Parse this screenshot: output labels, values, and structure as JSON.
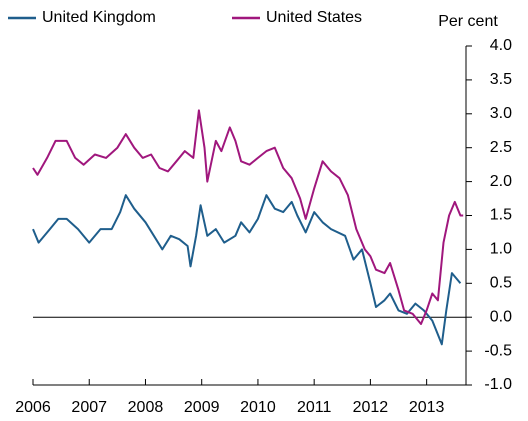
{
  "chart_data": {
    "type": "line",
    "y_axis_label": "Per cent",
    "legend": "top-left",
    "x": [],
    "series": [
      {
        "name": "United Kingdom",
        "color": "#1f5e8c",
        "x": [
          2006.0,
          2006.1,
          2006.3,
          2006.45,
          2006.6,
          2006.8,
          2007.0,
          2007.2,
          2007.4,
          2007.55,
          2007.65,
          2007.8,
          2008.0,
          2008.15,
          2008.3,
          2008.45,
          2008.6,
          2008.75,
          2008.8,
          2008.9,
          2008.98,
          2009.1,
          2009.25,
          2009.4,
          2009.6,
          2009.7,
          2009.85,
          2010.0,
          2010.15,
          2010.3,
          2010.45,
          2010.6,
          2010.7,
          2010.85,
          2011.0,
          2011.15,
          2011.3,
          2011.55,
          2011.7,
          2011.85,
          2012.0,
          2012.1,
          2012.25,
          2012.35,
          2012.5,
          2012.65,
          2012.8,
          2012.95,
          2013.0,
          2013.1,
          2013.27,
          2013.35,
          2013.45,
          2013.55,
          2013.6
        ],
        "values": [
          1.3,
          1.1,
          1.3,
          1.45,
          1.45,
          1.3,
          1.1,
          1.3,
          1.3,
          1.55,
          1.8,
          1.6,
          1.4,
          1.2,
          1.0,
          1.2,
          1.15,
          1.05,
          0.75,
          1.2,
          1.65,
          1.2,
          1.3,
          1.1,
          1.2,
          1.4,
          1.25,
          1.45,
          1.8,
          1.6,
          1.55,
          1.7,
          1.5,
          1.25,
          1.55,
          1.4,
          1.3,
          1.2,
          0.85,
          1.0,
          0.5,
          0.15,
          0.25,
          0.35,
          0.1,
          0.05,
          0.2,
          0.1,
          0.05,
          -0.05,
          -0.4,
          0.1,
          0.65,
          0.55,
          0.5
        ]
      },
      {
        "name": "United States",
        "color": "#a0177d",
        "x": [
          2006.0,
          2006.08,
          2006.25,
          2006.4,
          2006.6,
          2006.75,
          2006.9,
          2007.1,
          2007.3,
          2007.5,
          2007.65,
          2007.8,
          2007.95,
          2008.1,
          2008.25,
          2008.4,
          2008.55,
          2008.7,
          2008.85,
          2008.95,
          2009.05,
          2009.1,
          2009.25,
          2009.35,
          2009.5,
          2009.6,
          2009.7,
          2009.85,
          2010.0,
          2010.15,
          2010.3,
          2010.45,
          2010.6,
          2010.75,
          2010.85,
          2011.0,
          2011.15,
          2011.3,
          2011.45,
          2011.6,
          2011.75,
          2011.9,
          2012.0,
          2012.1,
          2012.25,
          2012.35,
          2012.5,
          2012.6,
          2012.75,
          2012.9,
          2013.0,
          2013.1,
          2013.2,
          2013.3,
          2013.4,
          2013.5,
          2013.6,
          2013.65
        ],
        "values": [
          2.2,
          2.1,
          2.35,
          2.6,
          2.6,
          2.35,
          2.25,
          2.4,
          2.35,
          2.5,
          2.7,
          2.5,
          2.35,
          2.4,
          2.2,
          2.15,
          2.3,
          2.45,
          2.35,
          3.05,
          2.5,
          2.0,
          2.6,
          2.45,
          2.8,
          2.6,
          2.3,
          2.25,
          2.35,
          2.45,
          2.5,
          2.2,
          2.05,
          1.75,
          1.45,
          1.9,
          2.3,
          2.15,
          2.05,
          1.8,
          1.3,
          1.0,
          0.9,
          0.7,
          0.65,
          0.8,
          0.4,
          0.1,
          0.05,
          -0.1,
          0.1,
          0.35,
          0.25,
          1.1,
          1.5,
          1.7,
          1.5,
          1.5
        ]
      }
    ],
    "xlim": [
      2006,
      2013.7
    ],
    "xticks": [
      2006,
      2007,
      2008,
      2009,
      2010,
      2011,
      2012,
      2013
    ],
    "ylim": [
      -1,
      4
    ],
    "yticks": [
      {
        "value": -1,
        "label": "-1.0"
      },
      {
        "value": -0.5,
        "label": "-0.5"
      },
      {
        "value": 0,
        "label": "0.0"
      },
      {
        "value": 0.5,
        "label": "0.5"
      },
      {
        "value": 1,
        "label": "1.0"
      },
      {
        "value": 1.5,
        "label": "1.5"
      },
      {
        "value": 2,
        "label": "2.0"
      },
      {
        "value": 2.5,
        "label": "2.5"
      },
      {
        "value": 3,
        "label": "3.0"
      },
      {
        "value": 3.5,
        "label": "3.5"
      },
      {
        "value": 4,
        "label": "4.0"
      }
    ],
    "y_axis_side": "right",
    "grid": false
  }
}
